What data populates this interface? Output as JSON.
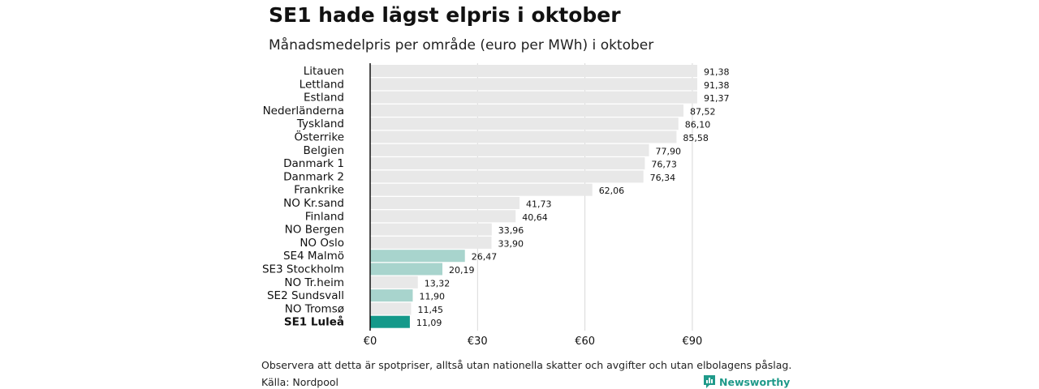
{
  "header": {
    "title": "SE1 hade lägst elpris i oktober",
    "subtitle": "Månadsmedelpris per område (euro per MWh) i oktober"
  },
  "footer": {
    "note": "Observera att detta är spotpriser, alltså utan nationella skatter och avgifter och utan elbolagens påslag.",
    "source": "Källa: Nordpool",
    "brand": "Newsworthy"
  },
  "colors": {
    "default_bar": "#e8e8e8",
    "swedish_bar": "#a8d4cd",
    "highlight_bar": "#14998a",
    "brand": "#1f9a8a"
  },
  "chart_data": {
    "type": "bar",
    "orientation": "horizontal",
    "title": "SE1 hade lägst elpris i oktober",
    "subtitle": "Månadsmedelpris per område (euro per MWh) i oktober",
    "xlim": [
      0,
      91.38
    ],
    "x_ticks": [
      0,
      30,
      60,
      90
    ],
    "x_tick_labels": [
      "€0",
      "€30",
      "€60",
      "€90"
    ],
    "grid": "vertical",
    "categories": [
      "Litauen",
      "Lettland",
      "Estland",
      "Nederländerna",
      "Tyskland",
      "Österrike",
      "Belgien",
      "Danmark  1",
      "Danmark  2",
      "Frankrike",
      "NO Kr.sand",
      "Finland",
      "NO Bergen",
      "NO Oslo",
      "SE4  Malmö",
      "SE3  Stockholm",
      "NO Tr.heim",
      "SE2  Sundsvall",
      "NO Tromsø",
      "SE1 Luleå"
    ],
    "values": [
      91.38,
      91.38,
      91.37,
      87.52,
      86.1,
      85.58,
      77.9,
      76.73,
      76.34,
      62.06,
      41.73,
      40.64,
      33.96,
      33.9,
      26.47,
      20.19,
      13.32,
      11.9,
      11.45,
      11.09
    ],
    "value_labels": [
      "91,38",
      "91,38",
      "91,37",
      "87,52",
      "86,10",
      "85,58",
      "77,90",
      "76,73",
      "76,34",
      "62,06",
      "41,73",
      "40,64",
      "33,96",
      "33,90",
      "26,47",
      "20,19",
      "13,32",
      "11,90",
      "11,45",
      "11,09"
    ],
    "highlight": [
      "none",
      "none",
      "none",
      "none",
      "none",
      "none",
      "none",
      "none",
      "none",
      "none",
      "none",
      "none",
      "none",
      "none",
      "swedish",
      "swedish",
      "none",
      "swedish",
      "none",
      "main"
    ]
  }
}
